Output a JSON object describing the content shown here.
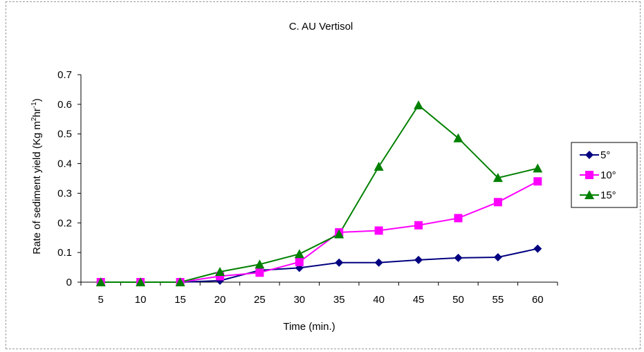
{
  "chart_data": {
    "type": "line",
    "title": "C. AU Vertisol",
    "xlabel": "Time (min.)",
    "ylabel": {
      "prefix": "Rate of sediment yield (Kg m",
      "sup1": "2",
      "mid": "hr",
      "sup2": "-1",
      "suffix": ")"
    },
    "categories": [
      "5",
      "10",
      "15",
      "20",
      "25",
      "30",
      "35",
      "40",
      "45",
      "50",
      "55",
      "60"
    ],
    "ylim": [
      0,
      0.7
    ],
    "yticks": [
      "0",
      "0.1",
      "0.2",
      "0.3",
      "0.4",
      "0.5",
      "0.6",
      "0.7"
    ],
    "grid": false,
    "legend_position": "right",
    "series": [
      {
        "name": "5°",
        "color": "#000080",
        "marker": "diamond",
        "values": [
          0,
          0,
          0,
          0.005,
          0.04,
          0.048,
          0.066,
          0.066,
          0.075,
          0.082,
          0.084,
          0.113
        ]
      },
      {
        "name": "10°",
        "color": "#FF00FF",
        "marker": "square",
        "values": [
          0,
          0,
          0,
          0.02,
          0.032,
          0.068,
          0.168,
          0.174,
          0.192,
          0.216,
          0.27,
          0.34
        ]
      },
      {
        "name": "15°",
        "color": "#008000",
        "marker": "triangle",
        "values": [
          0,
          0,
          0,
          0.035,
          0.06,
          0.095,
          0.162,
          0.39,
          0.597,
          0.486,
          0.352,
          0.384
        ]
      }
    ]
  }
}
